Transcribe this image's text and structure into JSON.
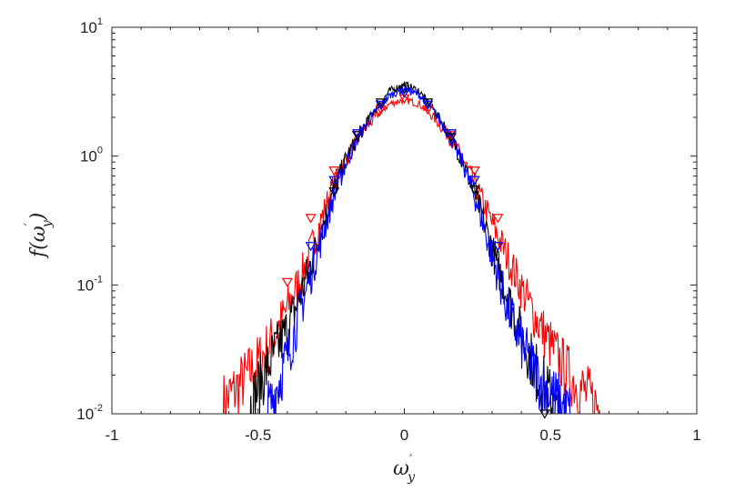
{
  "chart_data": {
    "type": "line",
    "title": "",
    "xlabel": {
      "base": "ω",
      "sup": "′",
      "sub": "y"
    },
    "ylabel": {
      "func": "f(",
      "base": "ω",
      "sup": "′",
      "sub": "y",
      "close": ")"
    },
    "xlim": [
      -1,
      1
    ],
    "ylim": [
      0.01,
      10
    ],
    "yscale": "log",
    "grid": false,
    "legend": "none",
    "x_ticks": [
      {
        "value": -1,
        "label": "-1"
      },
      {
        "value": -0.5,
        "label": "-0.5"
      },
      {
        "value": 0,
        "label": "0"
      },
      {
        "value": 0.5,
        "label": "0.5"
      },
      {
        "value": 1,
        "label": "1"
      }
    ],
    "y_ticks": [
      {
        "value": 0.01,
        "base": "10",
        "exp": "-2"
      },
      {
        "value": 0.1,
        "base": "10",
        "exp": "-1"
      },
      {
        "value": 1,
        "base": "10",
        "exp": "0"
      },
      {
        "value": 10,
        "base": "10",
        "exp": "1"
      }
    ],
    "series": [
      {
        "color": "#ff0000",
        "x": [
          -0.62,
          -0.55,
          -0.5,
          -0.45,
          -0.4,
          -0.35,
          -0.3,
          -0.25,
          -0.2,
          -0.15,
          -0.1,
          -0.05,
          0,
          0.05,
          0.1,
          0.15,
          0.2,
          0.25,
          0.3,
          0.35,
          0.4,
          0.45,
          0.5,
          0.55,
          0.6,
          0.65,
          0.68
        ],
        "y": [
          0.012,
          0.018,
          0.025,
          0.038,
          0.065,
          0.12,
          0.25,
          0.55,
          0.95,
          1.45,
          2.0,
          2.55,
          2.75,
          2.55,
          2.0,
          1.45,
          0.95,
          0.55,
          0.3,
          0.17,
          0.095,
          0.055,
          0.034,
          0.022,
          0.016,
          0.012,
          0.01
        ],
        "markers": {
          "shape": "triangle-down",
          "x": [
            -0.4,
            -0.32,
            -0.24,
            -0.16,
            -0.08,
            0,
            0.08,
            0.16,
            0.24,
            0.32
          ],
          "y": [
            0.105,
            0.33,
            0.77,
            1.45,
            2.3,
            2.8,
            2.3,
            1.45,
            0.77,
            0.33
          ]
        }
      },
      {
        "color": "#000000",
        "x": [
          -0.53,
          -0.5,
          -0.45,
          -0.4,
          -0.35,
          -0.3,
          -0.25,
          -0.2,
          -0.15,
          -0.1,
          -0.05,
          0,
          0.05,
          0.1,
          0.15,
          0.2,
          0.25,
          0.3,
          0.35,
          0.4,
          0.45,
          0.5,
          0.53
        ],
        "y": [
          0.011,
          0.016,
          0.028,
          0.045,
          0.09,
          0.2,
          0.48,
          0.95,
          1.55,
          2.3,
          3.2,
          3.6,
          3.2,
          2.3,
          1.55,
          0.9,
          0.45,
          0.19,
          0.085,
          0.04,
          0.022,
          0.013,
          0.01
        ],
        "markers": {
          "shape": "triangle-down",
          "x": [
            -0.24,
            -0.16,
            -0.08,
            0,
            0.08,
            0.16,
            0.24,
            0.32,
            0.48
          ],
          "y": [
            0.53,
            1.45,
            2.6,
            3.3,
            2.6,
            1.4,
            0.55,
            0.2,
            0.01
          ]
        }
      },
      {
        "color": "#0000ff",
        "x": [
          -0.47,
          -0.45,
          -0.4,
          -0.35,
          -0.3,
          -0.25,
          -0.2,
          -0.15,
          -0.1,
          -0.05,
          0,
          0.05,
          0.1,
          0.15,
          0.2,
          0.25,
          0.3,
          0.35,
          0.4,
          0.45,
          0.5,
          0.55,
          0.57
        ],
        "y": [
          0.01,
          0.013,
          0.028,
          0.07,
          0.17,
          0.42,
          0.88,
          1.5,
          2.2,
          2.95,
          3.3,
          3.0,
          2.25,
          1.5,
          0.88,
          0.42,
          0.17,
          0.07,
          0.035,
          0.02,
          0.014,
          0.011,
          0.01
        ],
        "markers": {
          "shape": "triangle-down",
          "x": [
            -0.32,
            -0.24,
            -0.16,
            -0.08,
            0,
            0.08,
            0.16,
            0.24,
            0.32
          ],
          "y": [
            0.2,
            0.65,
            1.5,
            2.5,
            3.1,
            2.5,
            1.5,
            0.65,
            0.2
          ]
        }
      }
    ]
  }
}
